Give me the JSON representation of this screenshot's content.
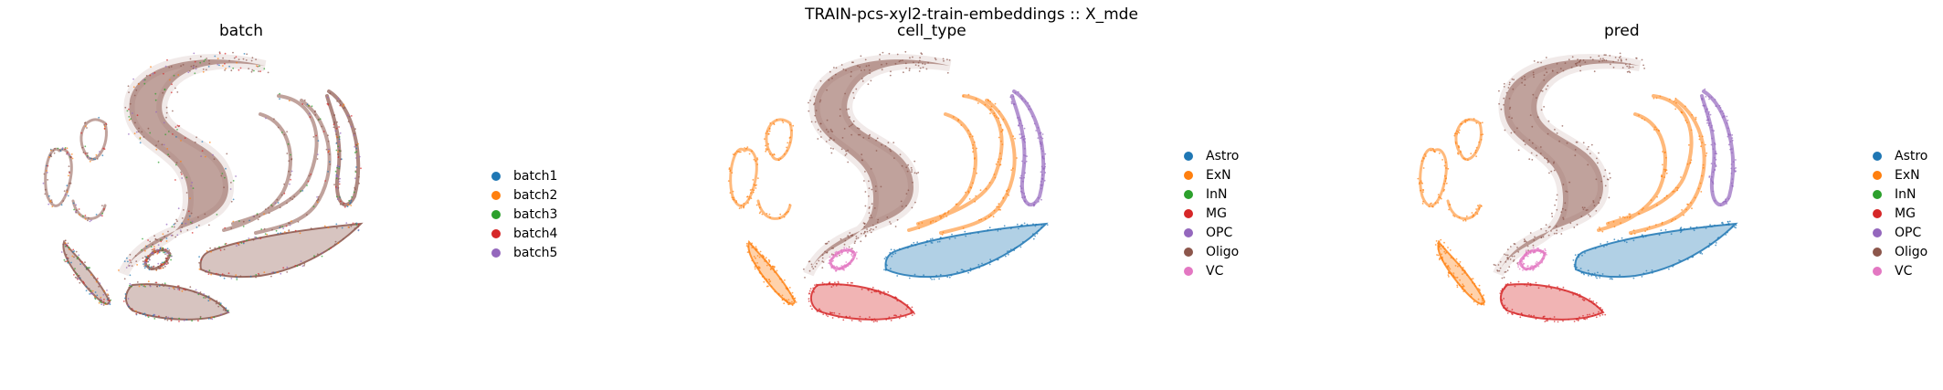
{
  "chart_data": {
    "type": "scatter",
    "suptitle": "TRAIN-pcs-xyl2-train-embeddings :: X_mde",
    "panels": [
      {
        "title": "batch",
        "legend": [
          {
            "label": "batch1",
            "color": "#1f77b4"
          },
          {
            "label": "batch2",
            "color": "#ff7f0e"
          },
          {
            "label": "batch3",
            "color": "#2ca02c"
          },
          {
            "label": "batch4",
            "color": "#d62728"
          },
          {
            "label": "batch5",
            "color": "#9467bd"
          }
        ],
        "clusters": [
          {
            "name": "big-s",
            "color": "mix"
          },
          {
            "name": "upper-left-loops",
            "color": "mix"
          },
          {
            "name": "right-arcs",
            "color": "mix"
          },
          {
            "name": "right-loop",
            "color": "mix"
          },
          {
            "name": "bottom-right-leaf",
            "color": "mix"
          },
          {
            "name": "bottom-center-leaf",
            "color": "mix"
          },
          {
            "name": "bottom-left-leaf",
            "color": "mix"
          },
          {
            "name": "small-loop",
            "color": "mix"
          }
        ]
      },
      {
        "title": "cell_type",
        "legend": [
          {
            "label": "Astro",
            "color": "#1f77b4"
          },
          {
            "label": "ExN",
            "color": "#ff7f0e"
          },
          {
            "label": "InN",
            "color": "#2ca02c"
          },
          {
            "label": "MG",
            "color": "#d62728"
          },
          {
            "label": "OPC",
            "color": "#9467bd"
          },
          {
            "label": "Oligo",
            "color": "#8c564b"
          },
          {
            "label": "VC",
            "color": "#e377c2"
          }
        ],
        "clusters": [
          {
            "name": "big-s",
            "color": "#8c564b"
          },
          {
            "name": "upper-left-loops",
            "color": "#ff7f0e"
          },
          {
            "name": "right-arcs",
            "color": "#ff7f0e"
          },
          {
            "name": "right-loop",
            "color": "#9467bd"
          },
          {
            "name": "bottom-right-leaf",
            "color": "#1f77b4"
          },
          {
            "name": "bottom-center-leaf",
            "color": "#d62728"
          },
          {
            "name": "bottom-left-leaf",
            "color": "#ff7f0e"
          },
          {
            "name": "small-loop",
            "color": "#e377c2"
          }
        ]
      },
      {
        "title": "pred",
        "legend": [
          {
            "label": "Astro",
            "color": "#1f77b4"
          },
          {
            "label": "ExN",
            "color": "#ff7f0e"
          },
          {
            "label": "InN",
            "color": "#2ca02c"
          },
          {
            "label": "MG",
            "color": "#d62728"
          },
          {
            "label": "OPC",
            "color": "#9467bd"
          },
          {
            "label": "Oligo",
            "color": "#8c564b"
          },
          {
            "label": "VC",
            "color": "#e377c2"
          }
        ],
        "clusters": [
          {
            "name": "big-s",
            "color": "#8c564b"
          },
          {
            "name": "upper-left-loops",
            "color": "#ff7f0e"
          },
          {
            "name": "right-arcs",
            "color": "#ff7f0e"
          },
          {
            "name": "right-loop",
            "color": "#9467bd"
          },
          {
            "name": "bottom-right-leaf",
            "color": "#1f77b4"
          },
          {
            "name": "bottom-center-leaf",
            "color": "#d62728"
          },
          {
            "name": "bottom-left-leaf",
            "color": "#ff7f0e"
          },
          {
            "name": "small-loop",
            "color": "#e377c2"
          }
        ]
      }
    ],
    "axes_visible": false,
    "grid": false,
    "legend_placement": "right"
  },
  "mix_palette": [
    "#8c564b",
    "#8c564b",
    "#8c564b",
    "#1f77b4",
    "#ff7f0e",
    "#2ca02c",
    "#d62728",
    "#9467bd"
  ]
}
